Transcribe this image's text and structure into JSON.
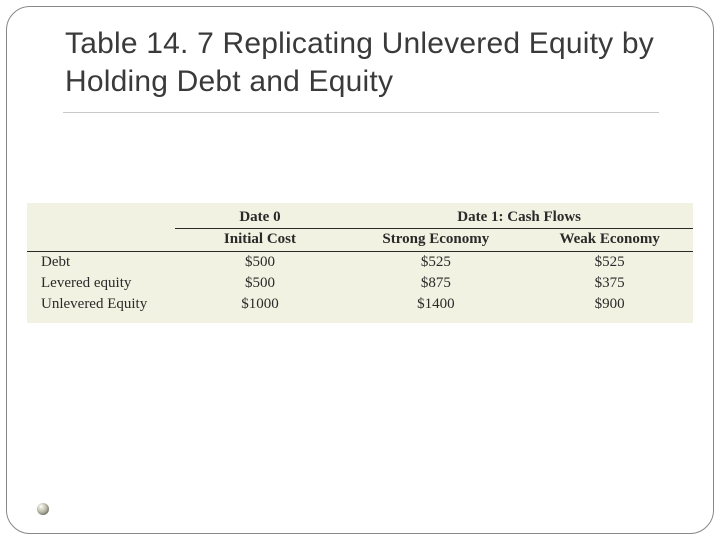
{
  "slide": {
    "title": "Table 14. 7  Replicating Unlevered Equity by Holding Debt and Equity"
  },
  "table": {
    "group_headers": {
      "date0": "Date 0",
      "date1": "Date 1: Cash Flows"
    },
    "sub_headers": {
      "initial_cost": "Initial Cost",
      "strong": "Strong Economy",
      "weak": "Weak Economy"
    },
    "rows": [
      {
        "label": "Debt",
        "initial": "$500",
        "strong": "$525",
        "weak": "$525"
      },
      {
        "label": "Levered equity",
        "initial": "$500",
        "strong": "$875",
        "weak": "$375"
      },
      {
        "label": "Unlevered Equity",
        "initial": "$1000",
        "strong": "$1400",
        "weak": "$900"
      }
    ]
  },
  "colors": {
    "frame_border": "#888888",
    "title_color": "#3a3a3a",
    "title_underline": "#c8c8c8",
    "table_bg": "#f2f2e2",
    "table_text": "#2a2a2a",
    "table_rule": "#2a2a2a"
  }
}
